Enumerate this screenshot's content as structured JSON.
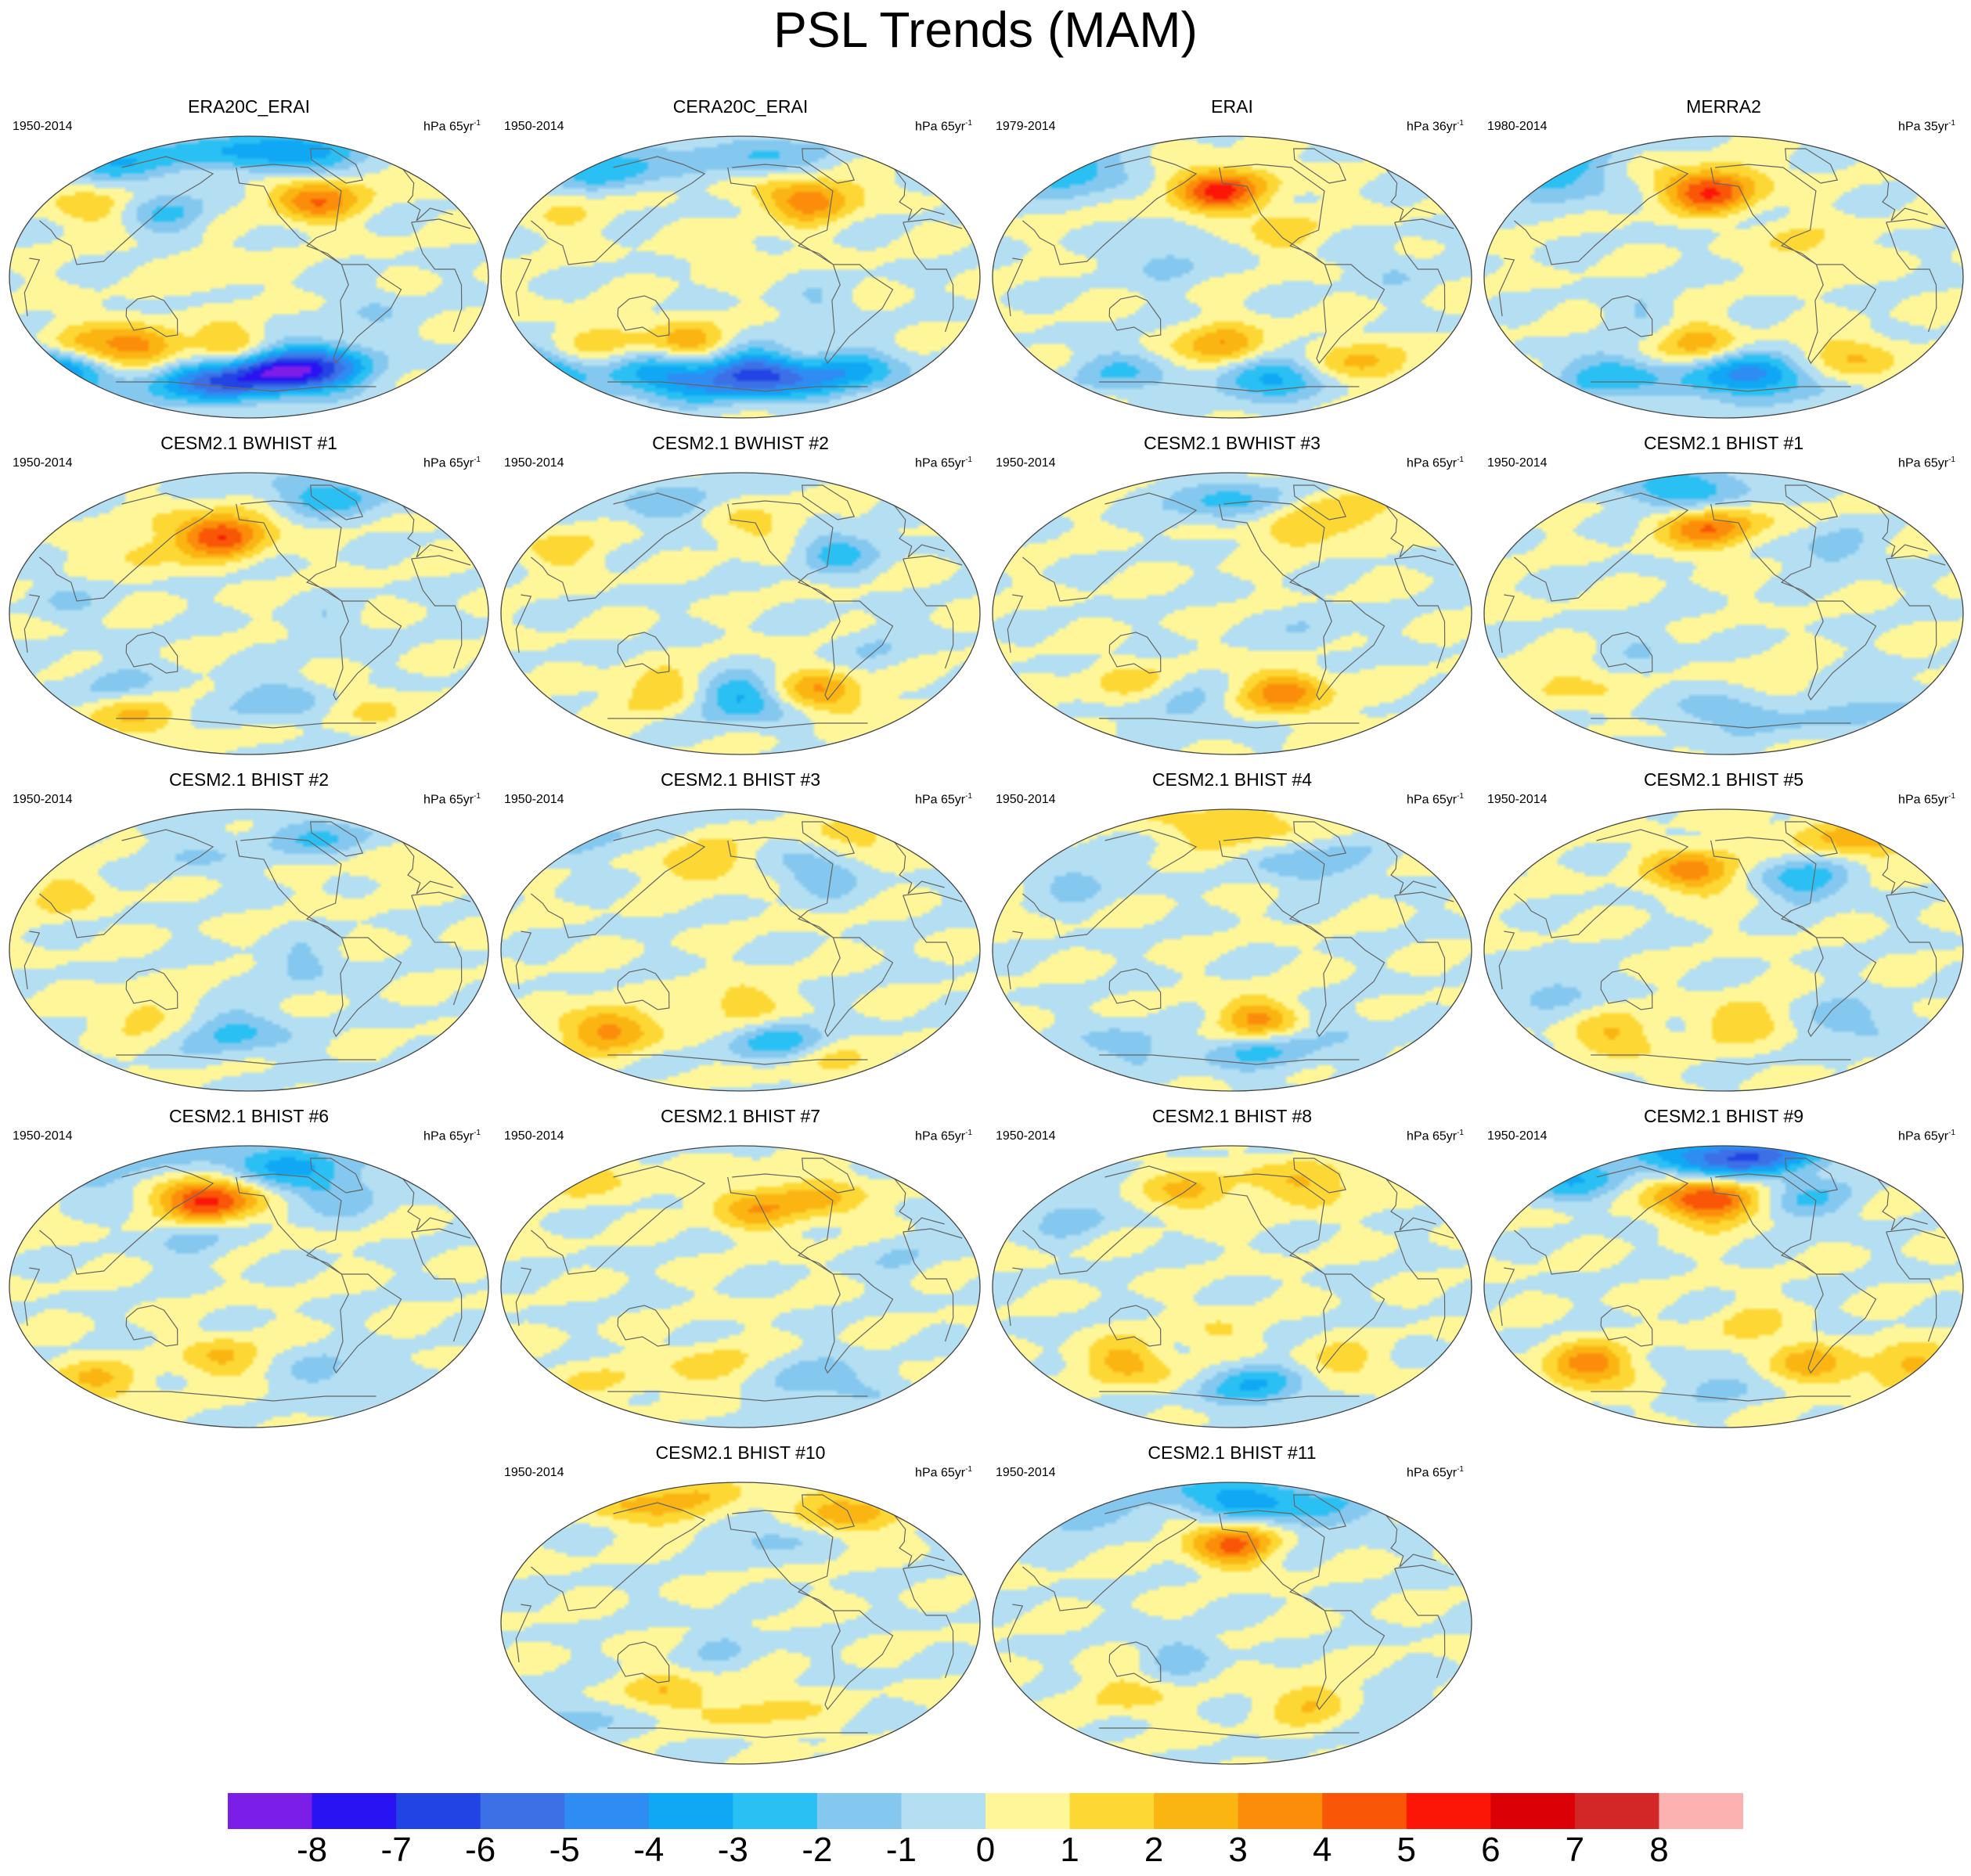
{
  "figure": {
    "title": "PSL Trends (MAM)"
  },
  "chart_data": {
    "type": "heatmap",
    "title": "PSL Trends (MAM)",
    "colorbar": {
      "levels": [
        "-8",
        "-7",
        "-6",
        "-5",
        "-4",
        "-3",
        "-2",
        "-1",
        "0",
        "1",
        "2",
        "3",
        "4",
        "5",
        "6",
        "7",
        "8"
      ],
      "colors": [
        "#7b1ee8",
        "#2a13f2",
        "#2244e4",
        "#3d6fe6",
        "#2f8cf2",
        "#10a8f5",
        "#2bc0f3",
        "#85c8ef",
        "#b4dff2",
        "#fef698",
        "#fdd835",
        "#fbb512",
        "#fb8d0a",
        "#f95607",
        "#fb1608",
        "#db0006",
        "#d32727",
        "#fdb2b2"
      ]
    },
    "panels": [
      {
        "title": "ERA20C_ERAI",
        "years": "1950-2014",
        "units_prefix": "hPa 65yr",
        "units_exp": "-1",
        "blobs": [
          {
            "lon": 20,
            "lat": -60,
            "v": -7.5
          },
          {
            "lon": -40,
            "lat": -65,
            "v": -4.5
          },
          {
            "lon": -150,
            "lat": -60,
            "v": -5
          },
          {
            "lon": 60,
            "lat": -55,
            "v": -4
          },
          {
            "lon": -10,
            "lat": -45,
            "v": 2.5
          },
          {
            "lon": -80,
            "lat": -45,
            "v": 3.5
          },
          {
            "lon": -130,
            "lat": -42,
            "v": 2
          },
          {
            "lon": 50,
            "lat": 50,
            "v": 4
          },
          {
            "lon": 30,
            "lat": 78,
            "v": -4
          },
          {
            "lon": -90,
            "lat": 75,
            "v": -3
          },
          {
            "lon": -60,
            "lat": 40,
            "v": -2
          },
          {
            "lon": -120,
            "lat": 45,
            "v": 1.5
          },
          {
            "lon": -30,
            "lat": 5,
            "v": 1
          },
          {
            "lon": 90,
            "lat": -20,
            "v": -1
          }
        ]
      },
      {
        "title": "CERA20C_ERAI",
        "years": "1950-2014",
        "units_prefix": "hPa 65yr",
        "units_exp": "-1",
        "blobs": [
          {
            "lon": 10,
            "lat": -62,
            "v": -6.5
          },
          {
            "lon": -60,
            "lat": -62,
            "v": -4
          },
          {
            "lon": -160,
            "lat": -60,
            "v": -4
          },
          {
            "lon": 80,
            "lat": -60,
            "v": -3.5
          },
          {
            "lon": -40,
            "lat": -42,
            "v": 2.5
          },
          {
            "lon": -100,
            "lat": -40,
            "v": 1.5
          },
          {
            "lon": 50,
            "lat": 50,
            "v": 4
          },
          {
            "lon": -100,
            "lat": 70,
            "v": -3
          },
          {
            "lon": 20,
            "lat": 75,
            "v": -2
          },
          {
            "lon": -130,
            "lat": 40,
            "v": 1
          },
          {
            "lon": -10,
            "lat": 15,
            "v": 1
          },
          {
            "lon": 60,
            "lat": -20,
            "v": -1
          }
        ]
      },
      {
        "title": "ERAI",
        "years": "1979-2014",
        "units_prefix": "hPa 36yr",
        "units_exp": "-1",
        "blobs": [
          {
            "lon": -10,
            "lat": 55,
            "v": 5
          },
          {
            "lon": -160,
            "lat": 72,
            "v": -3
          },
          {
            "lon": -110,
            "lat": 65,
            "v": -2
          },
          {
            "lon": -5,
            "lat": -45,
            "v": 3.5
          },
          {
            "lon": 30,
            "lat": -62,
            "v": -4
          },
          {
            "lon": 90,
            "lat": -55,
            "v": 2.5
          },
          {
            "lon": -80,
            "lat": -60,
            "v": -2
          },
          {
            "lon": -50,
            "lat": 10,
            "v": -1.5
          },
          {
            "lon": 40,
            "lat": 30,
            "v": 1.5
          },
          {
            "lon": 120,
            "lat": 5,
            "v": -1
          }
        ]
      },
      {
        "title": "MERRA2",
        "years": "1980-2014",
        "units_prefix": "hPa 35yr",
        "units_exp": "-1",
        "blobs": [
          {
            "lon": -10,
            "lat": 55,
            "v": 5
          },
          {
            "lon": -120,
            "lat": 60,
            "v": -2
          },
          {
            "lon": -150,
            "lat": 75,
            "v": -3
          },
          {
            "lon": 20,
            "lat": -62,
            "v": -5
          },
          {
            "lon": -20,
            "lat": -42,
            "v": 2.5
          },
          {
            "lon": 90,
            "lat": -50,
            "v": 2
          },
          {
            "lon": -80,
            "lat": -62,
            "v": -3
          },
          {
            "lon": 60,
            "lat": 20,
            "v": 1.5
          },
          {
            "lon": -60,
            "lat": -20,
            "v": -1
          }
        ]
      },
      {
        "title": "CESM2.1 BWHIST #1",
        "years": "1950-2014",
        "units_prefix": "hPa 65yr",
        "units_exp": "-1",
        "blobs": [
          {
            "lon": -20,
            "lat": 50,
            "v": 5
          },
          {
            "lon": -80,
            "lat": 40,
            "v": 1.5
          },
          {
            "lon": 60,
            "lat": 75,
            "v": -2.5
          },
          {
            "lon": -100,
            "lat": -45,
            "v": -1.5
          },
          {
            "lon": 20,
            "lat": -55,
            "v": -2
          },
          {
            "lon": -90,
            "lat": -65,
            "v": 2
          },
          {
            "lon": 80,
            "lat": -60,
            "v": 1
          },
          {
            "lon": -140,
            "lat": 10,
            "v": -1
          },
          {
            "lon": 60,
            "lat": -10,
            "v": -1
          }
        ]
      },
      {
        "title": "CESM2.1 BWHIST #2",
        "years": "1950-2014",
        "units_prefix": "hPa 65yr",
        "units_exp": "-1",
        "blobs": [
          {
            "lon": 0,
            "lat": -55,
            "v": -3.5
          },
          {
            "lon": 60,
            "lat": -50,
            "v": 3
          },
          {
            "lon": -60,
            "lat": -50,
            "v": 2
          },
          {
            "lon": 20,
            "lat": 55,
            "v": 1.5
          },
          {
            "lon": 70,
            "lat": 40,
            "v": -2.5
          },
          {
            "lon": -60,
            "lat": 70,
            "v": -1.5
          },
          {
            "lon": -130,
            "lat": 40,
            "v": 1.5
          },
          {
            "lon": 100,
            "lat": -20,
            "v": -1
          }
        ]
      },
      {
        "title": "CESM2.1 BWHIST #3",
        "years": "1950-2014",
        "units_prefix": "hPa 65yr",
        "units_exp": "-1",
        "blobs": [
          {
            "lon": 40,
            "lat": -50,
            "v": 3.5
          },
          {
            "lon": -80,
            "lat": -45,
            "v": 1.5
          },
          {
            "lon": 0,
            "lat": 70,
            "v": -2.5
          },
          {
            "lon": 100,
            "lat": 65,
            "v": 1.5
          },
          {
            "lon": 40,
            "lat": 55,
            "v": 2
          },
          {
            "lon": -40,
            "lat": -60,
            "v": -1.5
          },
          {
            "lon": 60,
            "lat": -10,
            "v": -1
          }
        ]
      },
      {
        "title": "CESM2.1 BHIST #1",
        "years": "1950-2014",
        "units_prefix": "hPa 65yr",
        "units_exp": "-1",
        "blobs": [
          {
            "lon": -10,
            "lat": 55,
            "v": 4
          },
          {
            "lon": -30,
            "lat": 78,
            "v": -3
          },
          {
            "lon": 80,
            "lat": 40,
            "v": -1.5
          },
          {
            "lon": 10,
            "lat": -62,
            "v": -2
          },
          {
            "lon": -120,
            "lat": -45,
            "v": 1.5
          },
          {
            "lon": 40,
            "lat": -45,
            "v": 1
          },
          {
            "lon": 100,
            "lat": -60,
            "v": -1.5
          },
          {
            "lon": -60,
            "lat": -20,
            "v": -1
          }
        ]
      },
      {
        "title": "CESM2.1 BHIST #2",
        "years": "1950-2014",
        "units_prefix": "hPa 65yr",
        "units_exp": "-1",
        "blobs": [
          {
            "lon": -10,
            "lat": -52,
            "v": -2.5
          },
          {
            "lon": -80,
            "lat": -40,
            "v": 1.5
          },
          {
            "lon": 60,
            "lat": 70,
            "v": -2
          },
          {
            "lon": -140,
            "lat": 35,
            "v": 1.5
          },
          {
            "lon": -40,
            "lat": 60,
            "v": -1
          },
          {
            "lon": 100,
            "lat": 55,
            "v": 1
          },
          {
            "lon": 40,
            "lat": -10,
            "v": -1.5
          }
        ]
      },
      {
        "title": "CESM2.1 BHIST #3",
        "years": "1950-2014",
        "units_prefix": "hPa 65yr",
        "units_exp": "-1",
        "blobs": [
          {
            "lon": -100,
            "lat": -50,
            "v": 3.5
          },
          {
            "lon": 30,
            "lat": -58,
            "v": -3
          },
          {
            "lon": 0,
            "lat": -35,
            "v": 2
          },
          {
            "lon": 60,
            "lat": -68,
            "v": 1.5
          },
          {
            "lon": -30,
            "lat": 55,
            "v": 2
          },
          {
            "lon": 60,
            "lat": 50,
            "v": -2
          },
          {
            "lon": 100,
            "lat": 70,
            "v": 1.5
          },
          {
            "lon": -120,
            "lat": 70,
            "v": -1.5
          }
        ]
      },
      {
        "title": "CESM2.1 BHIST #4",
        "years": "1950-2014",
        "units_prefix": "hPa 65yr",
        "units_exp": "-1",
        "blobs": [
          {
            "lon": 20,
            "lat": -45,
            "v": 3.5
          },
          {
            "lon": 20,
            "lat": -62,
            "v": -2.5
          },
          {
            "lon": 0,
            "lat": 78,
            "v": 2
          },
          {
            "lon": 60,
            "lat": 55,
            "v": -2
          },
          {
            "lon": -120,
            "lat": 45,
            "v": -1.5
          },
          {
            "lon": -80,
            "lat": -60,
            "v": -1.5
          },
          {
            "lon": 80,
            "lat": -50,
            "v": -1
          }
        ]
      },
      {
        "title": "CESM2.1 BHIST #5",
        "years": "1950-2014",
        "units_prefix": "hPa 65yr",
        "units_exp": "-1",
        "blobs": [
          {
            "lon": -20,
            "lat": 50,
            "v": 3.5
          },
          {
            "lon": 60,
            "lat": 45,
            "v": -3
          },
          {
            "lon": 100,
            "lat": 70,
            "v": 2.5
          },
          {
            "lon": 20,
            "lat": -45,
            "v": 2
          },
          {
            "lon": -80,
            "lat": -55,
            "v": 2
          },
          {
            "lon": 90,
            "lat": -45,
            "v": -2
          },
          {
            "lon": -130,
            "lat": -25,
            "v": -1.5
          }
        ]
      },
      {
        "title": "CESM2.1 BHIST #6",
        "years": "1950-2014",
        "units_prefix": "hPa 65yr",
        "units_exp": "-1",
        "blobs": [
          {
            "lon": -30,
            "lat": 55,
            "v": 5.5
          },
          {
            "lon": 20,
            "lat": 78,
            "v": -3
          },
          {
            "lon": -120,
            "lat": 75,
            "v": -2.5
          },
          {
            "lon": 60,
            "lat": 60,
            "v": -2
          },
          {
            "lon": -20,
            "lat": -45,
            "v": 2
          },
          {
            "lon": 60,
            "lat": -55,
            "v": -1.5
          },
          {
            "lon": -120,
            "lat": -60,
            "v": 2
          },
          {
            "lon": -40,
            "lat": 30,
            "v": -1.5
          }
        ]
      },
      {
        "title": "CESM2.1 BHIST #7",
        "years": "1950-2014",
        "units_prefix": "hPa 65yr",
        "units_exp": "-1",
        "blobs": [
          {
            "lon": 10,
            "lat": 50,
            "v": 2.5
          },
          {
            "lon": -120,
            "lat": 70,
            "v": 1.5
          },
          {
            "lon": 60,
            "lat": 55,
            "v": 2
          },
          {
            "lon": -20,
            "lat": -50,
            "v": 1.5
          },
          {
            "lon": 60,
            "lat": -60,
            "v": -2
          },
          {
            "lon": -100,
            "lat": -60,
            "v": 1
          },
          {
            "lon": 120,
            "lat": 20,
            "v": -1
          }
        ]
      },
      {
        "title": "CESM2.1 BHIST #8",
        "years": "1950-2014",
        "units_prefix": "hPa 65yr",
        "units_exp": "-1",
        "blobs": [
          {
            "lon": 20,
            "lat": -62,
            "v": -3
          },
          {
            "lon": -80,
            "lat": -48,
            "v": 2.5
          },
          {
            "lon": 80,
            "lat": -50,
            "v": 1.5
          },
          {
            "lon": -30,
            "lat": 60,
            "v": 2
          },
          {
            "lon": 60,
            "lat": 65,
            "v": 2
          },
          {
            "lon": -120,
            "lat": 45,
            "v": -1.5
          },
          {
            "lon": -10,
            "lat": -30,
            "v": 1
          }
        ]
      },
      {
        "title": "CESM2.1 BHIST #9",
        "years": "1950-2014",
        "units_prefix": "hPa 65yr",
        "units_exp": "-1",
        "blobs": [
          {
            "lon": -10,
            "lat": 55,
            "v": 5.5
          },
          {
            "lon": 10,
            "lat": 82,
            "v": -6
          },
          {
            "lon": -120,
            "lat": 70,
            "v": -3
          },
          {
            "lon": 60,
            "lat": 55,
            "v": -2
          },
          {
            "lon": -100,
            "lat": -50,
            "v": 3.5
          },
          {
            "lon": 60,
            "lat": -50,
            "v": 2.5
          },
          {
            "lon": 140,
            "lat": -50,
            "v": 2.5
          },
          {
            "lon": 0,
            "lat": -60,
            "v": -1.5
          },
          {
            "lon": 20,
            "lat": -25,
            "v": 1.5
          }
        ]
      },
      {
        "title": "CESM2.1 BHIST #10",
        "years": "1950-2014",
        "units_prefix": "hPa 65yr",
        "units_exp": "-1",
        "blobs": [
          {
            "lon": -60,
            "lat": 75,
            "v": 2.5
          },
          {
            "lon": 80,
            "lat": 70,
            "v": 2.5
          },
          {
            "lon": 20,
            "lat": 55,
            "v": -1.5
          },
          {
            "lon": -60,
            "lat": -45,
            "v": 2
          },
          {
            "lon": 20,
            "lat": -55,
            "v": 1.5
          },
          {
            "lon": -120,
            "lat": -60,
            "v": -1.5
          },
          {
            "lon": -10,
            "lat": -15,
            "v": -1
          }
        ]
      },
      {
        "title": "CESM2.1 BHIST #11",
        "years": "1950-2014",
        "units_prefix": "hPa 65yr",
        "units_exp": "-1",
        "blobs": [
          {
            "lon": 0,
            "lat": 50,
            "v": 4
          },
          {
            "lon": 0,
            "lat": 80,
            "v": -3
          },
          {
            "lon": -120,
            "lat": 70,
            "v": -2
          },
          {
            "lon": 60,
            "lat": 70,
            "v": -2
          },
          {
            "lon": -80,
            "lat": -45,
            "v": 1.5
          },
          {
            "lon": 60,
            "lat": -50,
            "v": 2
          },
          {
            "lon": -40,
            "lat": -20,
            "v": -1.5
          },
          {
            "lon": 120,
            "lat": -55,
            "v": -1
          }
        ]
      }
    ]
  }
}
